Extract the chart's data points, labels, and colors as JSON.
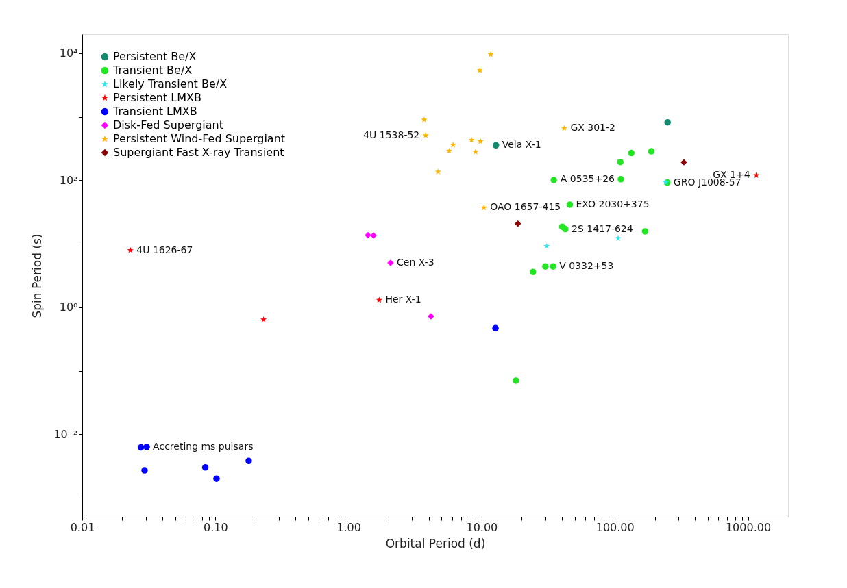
{
  "chart_data": {
    "type": "scatter",
    "xlabel": "Orbital Period (d)",
    "ylabel": "Spin Period (s)",
    "log": "xy",
    "grid": false,
    "legend": "top left",
    "xlim": [
      0.01,
      2000
    ],
    "ylim": [
      0.0005,
      20000
    ],
    "xticks": [
      {
        "value": 0.01,
        "label": "0.01"
      },
      {
        "value": 0.02,
        "label": null
      },
      {
        "value": 0.03,
        "label": null
      },
      {
        "value": 0.04,
        "label": null
      },
      {
        "value": 0.05,
        "label": null
      },
      {
        "value": 0.06,
        "label": null
      },
      {
        "value": 0.07,
        "label": null
      },
      {
        "value": 0.08,
        "label": null
      },
      {
        "value": 0.09,
        "label": null
      },
      {
        "value": 0.1,
        "label": "0.10"
      },
      {
        "value": 0.2,
        "label": null
      },
      {
        "value": 0.3,
        "label": null
      },
      {
        "value": 0.4,
        "label": null
      },
      {
        "value": 0.5,
        "label": null
      },
      {
        "value": 0.6,
        "label": null
      },
      {
        "value": 0.7,
        "label": null
      },
      {
        "value": 0.8,
        "label": null
      },
      {
        "value": 0.9,
        "label": null
      },
      {
        "value": 1,
        "label": "1.00"
      },
      {
        "value": 2,
        "label": null
      },
      {
        "value": 3,
        "label": null
      },
      {
        "value": 4,
        "label": null
      },
      {
        "value": 5,
        "label": null
      },
      {
        "value": 6,
        "label": null
      },
      {
        "value": 7,
        "label": null
      },
      {
        "value": 8,
        "label": null
      },
      {
        "value": 9,
        "label": null
      },
      {
        "value": 10,
        "label": "10.00"
      },
      {
        "value": 20,
        "label": null
      },
      {
        "value": 30,
        "label": null
      },
      {
        "value": 40,
        "label": null
      },
      {
        "value": 50,
        "label": null
      },
      {
        "value": 60,
        "label": null
      },
      {
        "value": 70,
        "label": null
      },
      {
        "value": 80,
        "label": null
      },
      {
        "value": 90,
        "label": null
      },
      {
        "value": 100,
        "label": "100.00"
      },
      {
        "value": 200,
        "label": null
      },
      {
        "value": 300,
        "label": null
      },
      {
        "value": 400,
        "label": null
      },
      {
        "value": 500,
        "label": null
      },
      {
        "value": 600,
        "label": null
      },
      {
        "value": 700,
        "label": null
      },
      {
        "value": 800,
        "label": null
      },
      {
        "value": 900,
        "label": null
      },
      {
        "value": 1000,
        "label": "1000.00"
      }
    ],
    "yticks": [
      {
        "value": 0.001,
        "label": null
      },
      {
        "value": 0.01,
        "label": "10⁻²"
      },
      {
        "value": 0.1,
        "label": null
      },
      {
        "value": 1,
        "label": "10⁰"
      },
      {
        "value": 10,
        "label": null
      },
      {
        "value": 100,
        "label": "10²"
      },
      {
        "value": 1000,
        "label": null
      },
      {
        "value": 10000,
        "label": "10⁴"
      }
    ],
    "series": [
      {
        "name": "Persistent Be/X",
        "color": "#138a6e",
        "marker": "circle",
        "x": [
          12.8,
          249
        ],
        "values": [
          355,
          818
        ]
      },
      {
        "name": "Transient Be/X",
        "color": "#22e622",
        "marker": "circle",
        "x": [
          34.8,
          110,
          133,
          188,
          111,
          248,
          45.9,
          40.3,
          42.5,
          169,
          24.3,
          30.1,
          34.4,
          18.1
        ],
        "values": [
          101,
          194,
          269,
          286,
          104,
          92.5,
          41.3,
          18.6,
          17.1,
          15.7,
          3.6,
          4.4,
          4.4,
          0.07
        ]
      },
      {
        "name": "Likely Transient Be/X",
        "color": "#2de8f0",
        "marker": "star",
        "x": [
          30.8,
          106,
          242
        ],
        "values": [
          9.2,
          12.2,
          93
        ]
      },
      {
        "name": "Persistent LMXB",
        "color": "#ff0000",
        "marker": "star",
        "x": [
          0.023,
          0.23,
          1.7,
          1156
        ],
        "values": [
          7.9,
          0.64,
          1.3,
          120
        ]
      },
      {
        "name": "Transient LMXB",
        "color": "#0000ff",
        "marker": "circle",
        "x": [
          0.0276,
          0.0305,
          0.0294,
          0.084,
          0.102,
          0.178,
          12.7
        ],
        "values": [
          0.0062,
          0.0063,
          0.0027,
          0.003,
          0.002,
          0.0038,
          0.47
        ]
      },
      {
        "name": "Disk-Fed Supergiant",
        "color": "#ff00ff",
        "marker": "diamond",
        "x": [
          1.4,
          1.54,
          2.07,
          4.16
        ],
        "values": [
          13.7,
          13.5,
          5.0,
          0.72
        ]
      },
      {
        "name": "Persistent Wind-Fed Supergiant",
        "color": "#ffb300",
        "marker": "star",
        "x": [
          11.7,
          9.7,
          3.7,
          3.8,
          8.4,
          9.8,
          6.1,
          5.7,
          9.0,
          4.7,
          41.7,
          10.4
        ],
        "values": [
          9600,
          5400,
          900,
          510,
          430,
          410,
          360,
          290,
          280,
          136,
          660,
          37
        ]
      },
      {
        "name": "Supergiant Fast X-ray Transient",
        "color": "#8b0000",
        "marker": "diamond",
        "x": [
          18.7,
          330
        ],
        "values": [
          20.8,
          192
        ]
      }
    ],
    "annotations": [
      {
        "text": "GX 301-2",
        "x": 41.7,
        "y": 660
      },
      {
        "text": "4U 1538-52",
        "x": 3.8,
        "y": 510
      },
      {
        "text": "Vela X-1",
        "x": 12.8,
        "y": 355
      },
      {
        "text": "OAO 1657-415",
        "x": 10.4,
        "y": 37
      },
      {
        "text": "A 0535+26",
        "x": 111,
        "y": 104
      },
      {
        "text": "EXO 2030+375",
        "x": 45.9,
        "y": 41.3
      },
      {
        "text": "2S 1417-624",
        "x": 42.5,
        "y": 17.1
      },
      {
        "text": "V 0332+53",
        "x": 34.4,
        "y": 4.4
      },
      {
        "text": "GRO J1008-57",
        "x": 248,
        "y": 92.5
      },
      {
        "text": "GX 1+4",
        "x": 1156,
        "y": 120
      },
      {
        "text": "Cen X-3",
        "x": 2.07,
        "y": 5.0
      },
      {
        "text": "4U 1626-67",
        "x": 0.023,
        "y": 7.9
      },
      {
        "text": "Her X-1",
        "x": 1.7,
        "y": 1.3
      },
      {
        "text": "Accreting ms pulsars",
        "x": 0.0305,
        "y": 0.0063
      }
    ]
  }
}
